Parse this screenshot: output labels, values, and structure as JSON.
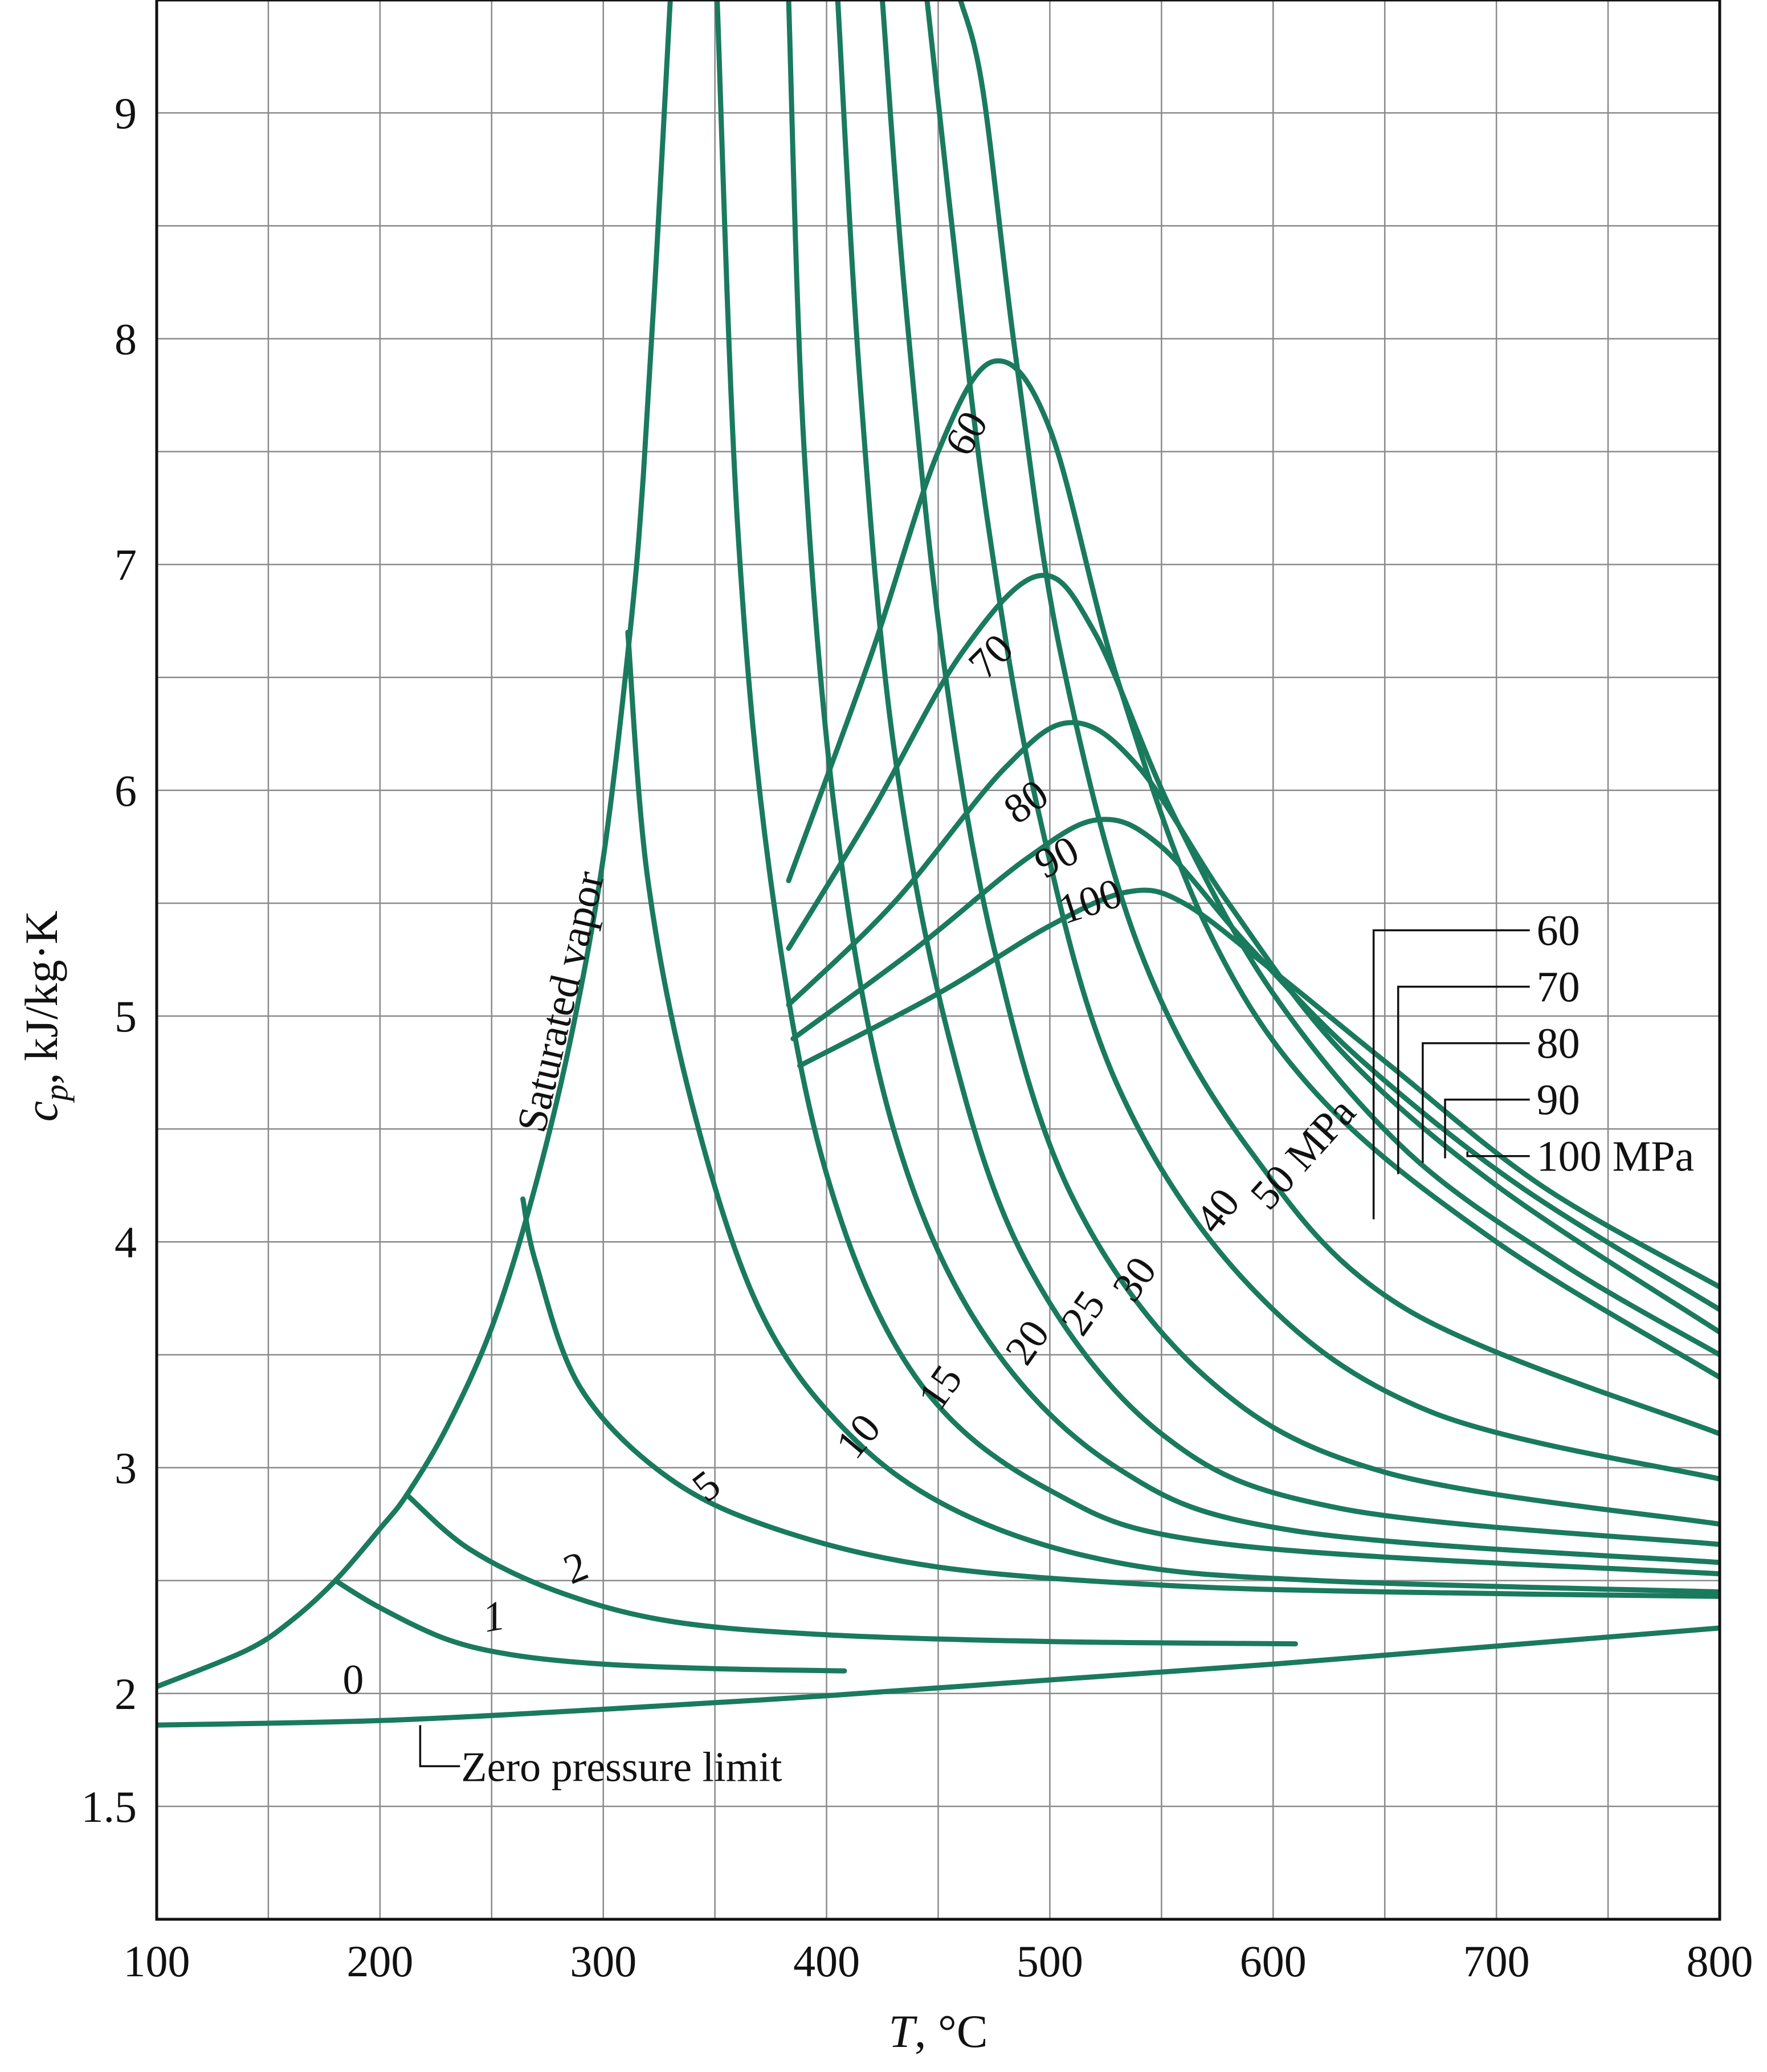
{
  "chart_data": {
    "type": "line",
    "title": "",
    "xlabel_var": "T",
    "xlabel_unit": ", °C",
    "ylabel_var": "c",
    "ylabel_sub": "p",
    "ylabel_unit": ", kJ/kg·K",
    "xlim": [
      100,
      800
    ],
    "ylim": [
      1.0,
      9.5
    ],
    "xticks": [
      100,
      200,
      300,
      400,
      500,
      600,
      700,
      800
    ],
    "xtick_labels": [
      "100",
      "200",
      "300",
      "400",
      "500",
      "600",
      "700",
      "800"
    ],
    "yticks": [
      1.5,
      2,
      3,
      4,
      5,
      6,
      7,
      8,
      9
    ],
    "ytick_labels": [
      "1.5",
      "2",
      "3",
      "4",
      "5",
      "6",
      "7",
      "8",
      "9"
    ],
    "grid": true,
    "grid_x_step": 50,
    "grid_y_step": 0.5,
    "line_color": "#1a7a5e",
    "series": [
      {
        "name": "0",
        "points": [
          [
            100,
            1.86
          ],
          [
            200,
            1.88
          ],
          [
            300,
            1.93
          ],
          [
            400,
            1.99
          ],
          [
            500,
            2.06
          ],
          [
            600,
            2.13
          ],
          [
            700,
            2.21
          ],
          [
            800,
            2.29
          ]
        ]
      },
      {
        "name": "Saturated vapor",
        "points": [
          [
            100,
            2.03
          ],
          [
            140,
            2.19
          ],
          [
            160,
            2.32
          ],
          [
            180,
            2.5
          ],
          [
            200,
            2.73
          ],
          [
            212,
            2.88
          ],
          [
            230,
            3.18
          ],
          [
            250,
            3.62
          ],
          [
            268,
            4.19
          ],
          [
            285,
            4.88
          ],
          [
            300,
            5.7
          ],
          [
            312,
            6.7
          ],
          [
            318,
            7.4
          ],
          [
            324,
            8.4
          ],
          [
            330,
            9.5
          ]
        ]
      },
      {
        "name": "1",
        "points": [
          [
            180,
            2.5
          ],
          [
            200,
            2.38
          ],
          [
            230,
            2.24
          ],
          [
            260,
            2.17
          ],
          [
            300,
            2.13
          ],
          [
            350,
            2.11
          ],
          [
            408,
            2.1
          ]
        ]
      },
      {
        "name": "2",
        "points": [
          [
            212,
            2.88
          ],
          [
            240,
            2.64
          ],
          [
            280,
            2.45
          ],
          [
            330,
            2.32
          ],
          [
            400,
            2.26
          ],
          [
            500,
            2.23
          ],
          [
            610,
            2.22
          ]
        ]
      },
      {
        "name": "5",
        "points": [
          [
            264,
            4.19
          ],
          [
            270,
            3.9
          ],
          [
            290,
            3.35
          ],
          [
            330,
            2.95
          ],
          [
            380,
            2.72
          ],
          [
            450,
            2.56
          ],
          [
            550,
            2.48
          ],
          [
            650,
            2.45
          ],
          [
            800,
            2.43
          ]
        ]
      },
      {
        "name": "10",
        "points": [
          [
            311,
            6.7
          ],
          [
            320,
            5.6
          ],
          [
            340,
            4.6
          ],
          [
            370,
            3.7
          ],
          [
            410,
            3.15
          ],
          [
            460,
            2.8
          ],
          [
            530,
            2.58
          ],
          [
            620,
            2.5
          ],
          [
            800,
            2.45
          ]
        ]
      },
      {
        "name": "15",
        "points": [
          [
            351,
            9.5
          ],
          [
            360,
            7.2
          ],
          [
            375,
            5.6
          ],
          [
            400,
            4.3
          ],
          [
            440,
            3.4
          ],
          [
            500,
            2.9
          ],
          [
            580,
            2.66
          ],
          [
            800,
            2.53
          ]
        ]
      },
      {
        "name": "20",
        "points": [
          [
            383,
            9.5
          ],
          [
            390,
            7.5
          ],
          [
            405,
            5.8
          ],
          [
            430,
            4.5
          ],
          [
            470,
            3.6
          ],
          [
            530,
            3.0
          ],
          [
            610,
            2.72
          ],
          [
            800,
            2.58
          ]
        ]
      },
      {
        "name": "25",
        "points": [
          [
            405,
            9.5
          ],
          [
            415,
            7.8
          ],
          [
            430,
            6.2
          ],
          [
            455,
            4.9
          ],
          [
            490,
            3.9
          ],
          [
            550,
            3.15
          ],
          [
            630,
            2.82
          ],
          [
            800,
            2.66
          ]
        ]
      },
      {
        "name": "30",
        "points": [
          [
            425,
            9.5
          ],
          [
            435,
            8.2
          ],
          [
            452,
            6.6
          ],
          [
            475,
            5.3
          ],
          [
            510,
            4.2
          ],
          [
            570,
            3.4
          ],
          [
            650,
            2.98
          ],
          [
            800,
            2.75
          ]
        ]
      },
      {
        "name": "40",
        "points": [
          [
            445,
            9.5
          ],
          [
            455,
            8.6
          ],
          [
            472,
            7.2
          ],
          [
            495,
            5.9
          ],
          [
            530,
            4.7
          ],
          [
            590,
            3.8
          ],
          [
            670,
            3.25
          ],
          [
            800,
            2.95
          ]
        ]
      },
      {
        "name": "50 MPa",
        "points": [
          [
            460,
            9.5
          ],
          [
            470,
            9.1
          ],
          [
            485,
            7.9
          ],
          [
            505,
            6.6
          ],
          [
            540,
            5.3
          ],
          [
            590,
            4.4
          ],
          [
            660,
            3.7
          ],
          [
            800,
            3.15
          ]
        ]
      },
      {
        "name": "60",
        "points": [
          [
            383,
            5.6
          ],
          [
            420,
            6.6
          ],
          [
            450,
            7.5
          ],
          [
            475,
            7.9
          ],
          [
            500,
            7.6
          ],
          [
            530,
            6.5
          ],
          [
            570,
            5.4
          ],
          [
            620,
            4.65
          ],
          [
            700,
            4.0
          ],
          [
            800,
            3.4
          ]
        ]
      },
      {
        "name": "70",
        "points": [
          [
            383,
            5.3
          ],
          [
            420,
            5.9
          ],
          [
            460,
            6.6
          ],
          [
            495,
            6.95
          ],
          [
            520,
            6.7
          ],
          [
            555,
            5.9
          ],
          [
            600,
            5.1
          ],
          [
            660,
            4.4
          ],
          [
            730,
            3.9
          ],
          [
            800,
            3.5
          ]
        ]
      },
      {
        "name": "80",
        "points": [
          [
            383,
            5.05
          ],
          [
            430,
            5.5
          ],
          [
            480,
            6.1
          ],
          [
            510,
            6.3
          ],
          [
            540,
            6.1
          ],
          [
            580,
            5.5
          ],
          [
            630,
            4.85
          ],
          [
            700,
            4.25
          ],
          [
            800,
            3.6
          ]
        ]
      },
      {
        "name": "90",
        "points": [
          [
            385,
            4.9
          ],
          [
            440,
            5.3
          ],
          [
            490,
            5.7
          ],
          [
            522,
            5.87
          ],
          [
            550,
            5.75
          ],
          [
            590,
            5.3
          ],
          [
            640,
            4.8
          ],
          [
            710,
            4.25
          ],
          [
            800,
            3.7
          ]
        ]
      },
      {
        "name": "100 MPa",
        "points": [
          [
            388,
            4.78
          ],
          [
            450,
            5.1
          ],
          [
            500,
            5.4
          ],
          [
            535,
            5.55
          ],
          [
            560,
            5.5
          ],
          [
            600,
            5.2
          ],
          [
            650,
            4.8
          ],
          [
            720,
            4.25
          ],
          [
            800,
            3.8
          ]
        ]
      }
    ],
    "curve_labels": [
      {
        "text": "0",
        "x": 188,
        "y": 2.0,
        "angle": 0
      },
      {
        "text": "1",
        "x": 252,
        "y": 2.28,
        "angle": -10
      },
      {
        "text": "2",
        "x": 290,
        "y": 2.5,
        "angle": -22
      },
      {
        "text": "5",
        "x": 350,
        "y": 2.87,
        "angle": -38
      },
      {
        "text": "10",
        "x": 419,
        "y": 3.1,
        "angle": -50
      },
      {
        "text": "15",
        "x": 456,
        "y": 3.32,
        "angle": -55
      },
      {
        "text": "20",
        "x": 495,
        "y": 3.52,
        "angle": -55
      },
      {
        "text": "25",
        "x": 520,
        "y": 3.65,
        "angle": -55
      },
      {
        "text": "30",
        "x": 543,
        "y": 3.8,
        "angle": -55
      },
      {
        "text": "40",
        "x": 580,
        "y": 4.1,
        "angle": -52
      },
      {
        "text": "50 MPa",
        "x": 618,
        "y": 4.35,
        "angle": -48
      },
      {
        "text": "60",
        "x": 468,
        "y": 7.55,
        "angle": -60
      },
      {
        "text": "70",
        "x": 478,
        "y": 6.55,
        "angle": -45
      },
      {
        "text": "80",
        "x": 493,
        "y": 5.9,
        "angle": -36
      },
      {
        "text": "90",
        "x": 506,
        "y": 5.65,
        "angle": -28
      },
      {
        "text": "100",
        "x": 520,
        "y": 5.45,
        "angle": -18
      },
      {
        "text": "Saturated vapor",
        "x": 287,
        "y": 5.05,
        "angle": -77
      }
    ],
    "annotation_zero": {
      "text": "Zero pressure limit",
      "anchor_x": 218,
      "anchor_y": 1.88
    },
    "legend_callouts": [
      {
        "text": "60",
        "line_x": 645,
        "anchor_y": 4.1,
        "label_y": 5.38
      },
      {
        "text": "70",
        "line_x": 656,
        "anchor_y": 4.3,
        "label_y": 5.13
      },
      {
        "text": "80",
        "line_x": 667,
        "anchor_y": 4.35,
        "label_y": 4.88
      },
      {
        "text": "90",
        "line_x": 677,
        "anchor_y": 4.37,
        "label_y": 4.63
      },
      {
        "text": "100 MPa",
        "line_x": 687,
        "anchor_y": 4.4,
        "label_y": 4.38
      }
    ]
  }
}
